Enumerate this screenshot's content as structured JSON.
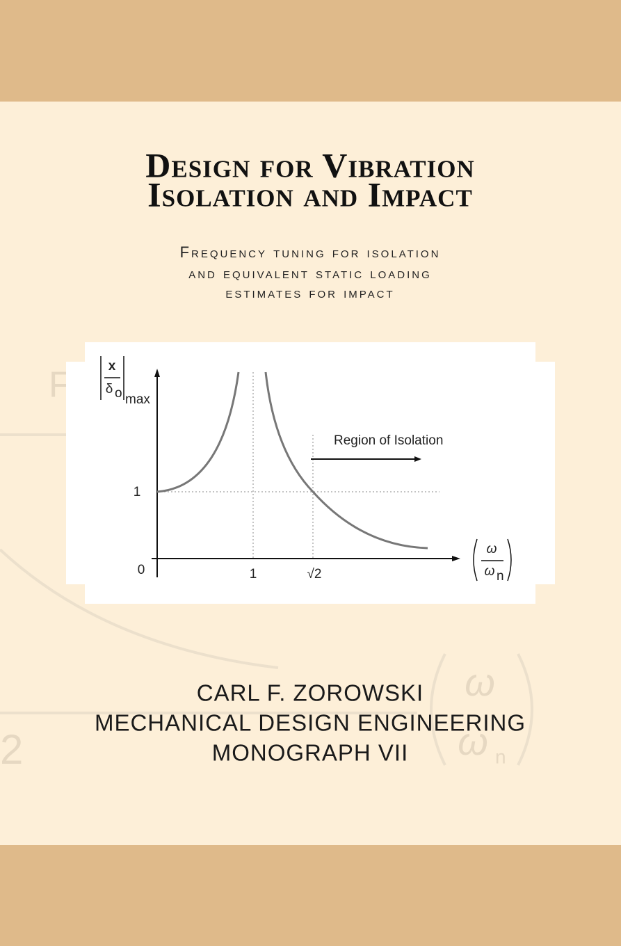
{
  "title": {
    "lines": [
      "Design for Vibration",
      "Isolation and Impact"
    ]
  },
  "subtitle": {
    "lines": [
      "Frequency tuning for isolation",
      "and equivalent static loading",
      "estimates for impact"
    ]
  },
  "figure": {
    "y_label_numerator": "x",
    "y_label_denominator": "δ",
    "y_label_denominator_sub": "o",
    "y_label_sub": "max",
    "y_tick_one": "1",
    "origin": "0",
    "x_tick_one": "1",
    "x_tick_root": "√2",
    "region_label": "Region of Isolation",
    "x_label_numerator": "ω",
    "x_label_denominator": "ω",
    "x_label_denominator_sub": "n"
  },
  "watermark": {
    "letter": "F",
    "digit": "2",
    "numerator": "ω",
    "denominator": "ω",
    "denominator_sub": "n"
  },
  "author": {
    "lines": [
      "CARL F. ZOROWSKI",
      "MECHANICAL DESIGN ENGINEERING",
      "MONOGRAPH VII"
    ]
  }
}
